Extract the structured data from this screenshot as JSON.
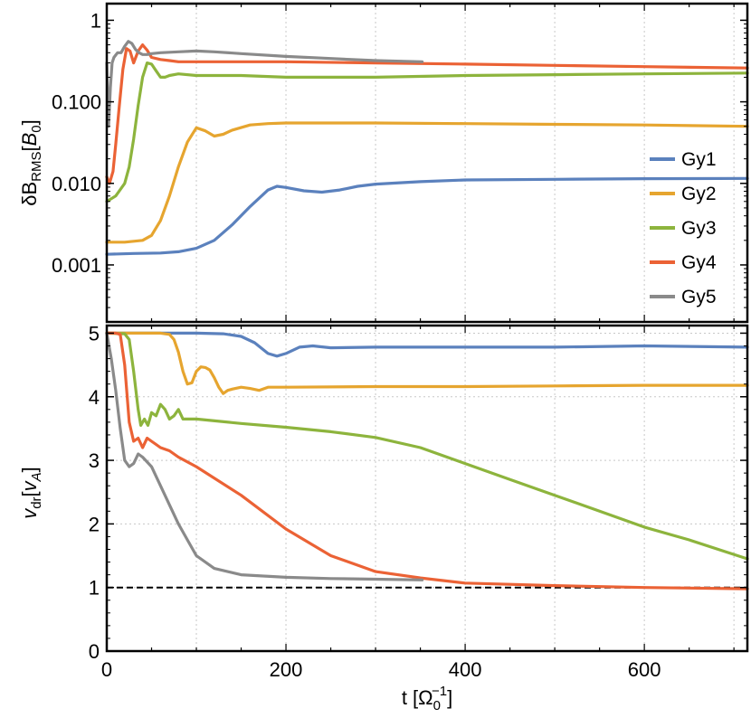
{
  "colors": {
    "Gy1": "#5b81bd",
    "Gy2": "#e6a52f",
    "Gy3": "#8db43d",
    "Gy4": "#eb6235",
    "Gy5": "#8a8a8a",
    "grid": "#c8c8c8",
    "reference": "#000000"
  },
  "chart_data": [
    {
      "type": "line",
      "panel": "top",
      "ylabel": "δB_RMS [B_0]",
      "ylabel_parts": {
        "main": "δB",
        "sub": "RMS",
        "bracket_open": "[",
        "unit": "B",
        "unit_sub": "0",
        "bracket_close": "]"
      },
      "yscale": "log",
      "xlim": [
        0,
        715
      ],
      "ylim": [
        0.0002,
        1.6
      ],
      "x_gridlines": [
        100,
        200,
        300,
        400,
        500,
        600,
        700
      ],
      "yticks": [
        {
          "value": 1,
          "label": "1"
        },
        {
          "value": 0.1,
          "label": "0.100"
        },
        {
          "value": 0.01,
          "label": "0.010"
        },
        {
          "value": 0.001,
          "label": "0.001"
        }
      ],
      "legend": {
        "position": "right",
        "entries": [
          "Gy1",
          "Gy2",
          "Gy3",
          "Gy4",
          "Gy5"
        ]
      },
      "series": [
        {
          "name": "Gy1",
          "x": [
            0,
            30,
            60,
            80,
            100,
            120,
            140,
            160,
            180,
            190,
            200,
            220,
            240,
            260,
            280,
            300,
            350,
            400,
            500,
            600,
            715
          ],
          "y": [
            0.00135,
            0.00138,
            0.0014,
            0.00145,
            0.0016,
            0.002,
            0.0031,
            0.0052,
            0.0083,
            0.0092,
            0.0089,
            0.0081,
            0.0078,
            0.0083,
            0.0092,
            0.0098,
            0.0105,
            0.011,
            0.0112,
            0.0114,
            0.0115
          ]
        },
        {
          "name": "Gy2",
          "x": [
            0,
            20,
            40,
            50,
            60,
            70,
            80,
            90,
            100,
            110,
            120,
            130,
            140,
            160,
            180,
            200,
            300,
            400,
            500,
            600,
            715
          ],
          "y": [
            0.0019,
            0.0019,
            0.002,
            0.0023,
            0.0035,
            0.007,
            0.016,
            0.032,
            0.048,
            0.044,
            0.038,
            0.04,
            0.045,
            0.052,
            0.054,
            0.055,
            0.055,
            0.054,
            0.053,
            0.052,
            0.05
          ]
        },
        {
          "name": "Gy3",
          "x": [
            0,
            10,
            20,
            25,
            30,
            35,
            40,
            45,
            50,
            55,
            60,
            65,
            70,
            80,
            100,
            150,
            200,
            300,
            400,
            500,
            600,
            715
          ],
          "y": [
            0.006,
            0.007,
            0.01,
            0.016,
            0.035,
            0.09,
            0.2,
            0.3,
            0.29,
            0.24,
            0.2,
            0.2,
            0.21,
            0.22,
            0.21,
            0.21,
            0.2,
            0.2,
            0.21,
            0.215,
            0.22,
            0.225
          ]
        },
        {
          "name": "Gy4",
          "x": [
            0,
            3,
            7,
            10,
            14,
            18,
            22,
            26,
            30,
            35,
            40,
            45,
            50,
            60,
            70,
            80,
            100,
            150,
            200,
            300,
            400,
            500,
            600,
            715
          ],
          "y": [
            0.012,
            0.01,
            0.014,
            0.03,
            0.09,
            0.25,
            0.45,
            0.42,
            0.3,
            0.42,
            0.5,
            0.43,
            0.35,
            0.33,
            0.32,
            0.31,
            0.31,
            0.31,
            0.31,
            0.3,
            0.29,
            0.28,
            0.27,
            0.26
          ]
        },
        {
          "name": "Gy5",
          "x": [
            0,
            2,
            4,
            6,
            8,
            12,
            16,
            20,
            24,
            28,
            32,
            36,
            40,
            45,
            50,
            60,
            80,
            100,
            120,
            150,
            200,
            250,
            300,
            352
          ],
          "y": [
            0.3,
            0.05,
            0.15,
            0.3,
            0.35,
            0.4,
            0.4,
            0.48,
            0.55,
            0.52,
            0.44,
            0.4,
            0.38,
            0.38,
            0.39,
            0.4,
            0.41,
            0.42,
            0.41,
            0.39,
            0.36,
            0.34,
            0.32,
            0.31
          ]
        }
      ]
    },
    {
      "type": "line",
      "panel": "bottom",
      "ylabel": "v_dr [v_A]",
      "ylabel_parts": {
        "main": "v",
        "sub": "dr",
        "bracket_open": "[",
        "unit": "v",
        "unit_sub": "A",
        "bracket_close": "]"
      },
      "xlabel": "t [Ω_0^-1]",
      "xlabel_parts": {
        "main": "t [",
        "unit": "Ω",
        "sub": "0",
        "sup": "−1",
        "close": "]"
      },
      "xlim": [
        0,
        715
      ],
      "ylim": [
        0,
        5.12
      ],
      "x_gridlines": [
        100,
        200,
        300,
        400,
        500,
        600,
        700
      ],
      "y_gridlines": [
        1,
        2,
        3,
        4,
        5
      ],
      "xticks": [
        {
          "value": 0,
          "label": "0"
        },
        {
          "value": 200,
          "label": "200"
        },
        {
          "value": 400,
          "label": "400"
        },
        {
          "value": 600,
          "label": "600"
        }
      ],
      "yticks": [
        {
          "value": 0,
          "label": "0"
        },
        {
          "value": 1,
          "label": "1"
        },
        {
          "value": 2,
          "label": "2"
        },
        {
          "value": 3,
          "label": "3"
        },
        {
          "value": 4,
          "label": "4"
        },
        {
          "value": 5,
          "label": "5"
        }
      ],
      "reference_line": {
        "y": 1,
        "style": "dashed"
      },
      "series": [
        {
          "name": "Gy1",
          "x": [
            0,
            100,
            130,
            150,
            165,
            180,
            190,
            200,
            215,
            230,
            250,
            300,
            400,
            500,
            600,
            715
          ],
          "y": [
            5,
            5,
            4.99,
            4.95,
            4.85,
            4.68,
            4.64,
            4.68,
            4.78,
            4.8,
            4.77,
            4.78,
            4.78,
            4.78,
            4.8,
            4.78
          ]
        },
        {
          "name": "Gy2",
          "x": [
            0,
            60,
            70,
            75,
            80,
            85,
            90,
            95,
            100,
            105,
            110,
            115,
            120,
            125,
            130,
            135,
            140,
            150,
            160,
            170,
            180,
            200,
            300,
            400,
            500,
            600,
            715
          ],
          "y": [
            5,
            5,
            4.98,
            4.9,
            4.7,
            4.4,
            4.2,
            4.22,
            4.4,
            4.47,
            4.46,
            4.42,
            4.3,
            4.15,
            4.05,
            4.1,
            4.12,
            4.15,
            4.13,
            4.1,
            4.15,
            4.15,
            4.16,
            4.16,
            4.17,
            4.18,
            4.18
          ]
        },
        {
          "name": "Gy3",
          "x": [
            0,
            20,
            25,
            30,
            35,
            38,
            42,
            46,
            50,
            55,
            60,
            65,
            70,
            75,
            80,
            85,
            90,
            100,
            150,
            200,
            250,
            300,
            350,
            400,
            450,
            500,
            550,
            600,
            650,
            715
          ],
          "y": [
            5,
            4.99,
            4.9,
            4.4,
            3.8,
            3.55,
            3.65,
            3.55,
            3.75,
            3.7,
            3.88,
            3.8,
            3.65,
            3.7,
            3.8,
            3.65,
            3.65,
            3.65,
            3.58,
            3.52,
            3.45,
            3.36,
            3.2,
            2.95,
            2.7,
            2.45,
            2.2,
            1.95,
            1.75,
            1.45
          ]
        },
        {
          "name": "Gy4",
          "x": [
            0,
            10,
            15,
            20,
            25,
            30,
            35,
            40,
            45,
            50,
            55,
            60,
            70,
            80,
            100,
            150,
            200,
            250,
            300,
            350,
            400,
            450,
            500,
            600,
            715
          ],
          "y": [
            5,
            5,
            4.98,
            4.5,
            3.6,
            3.3,
            3.35,
            3.2,
            3.35,
            3.3,
            3.25,
            3.2,
            3.15,
            3.05,
            2.9,
            2.45,
            1.92,
            1.5,
            1.25,
            1.15,
            1.07,
            1.05,
            1.03,
            1.0,
            0.98
          ]
        },
        {
          "name": "Gy5",
          "x": [
            0,
            5,
            10,
            15,
            20,
            25,
            30,
            35,
            40,
            50,
            60,
            70,
            80,
            90,
            100,
            120,
            150,
            200,
            250,
            300,
            352
          ],
          "y": [
            5,
            4.6,
            4.1,
            3.5,
            3.0,
            2.9,
            2.95,
            3.1,
            3.05,
            2.9,
            2.6,
            2.3,
            2.0,
            1.75,
            1.5,
            1.3,
            1.2,
            1.16,
            1.14,
            1.13,
            1.12
          ]
        }
      ]
    }
  ]
}
